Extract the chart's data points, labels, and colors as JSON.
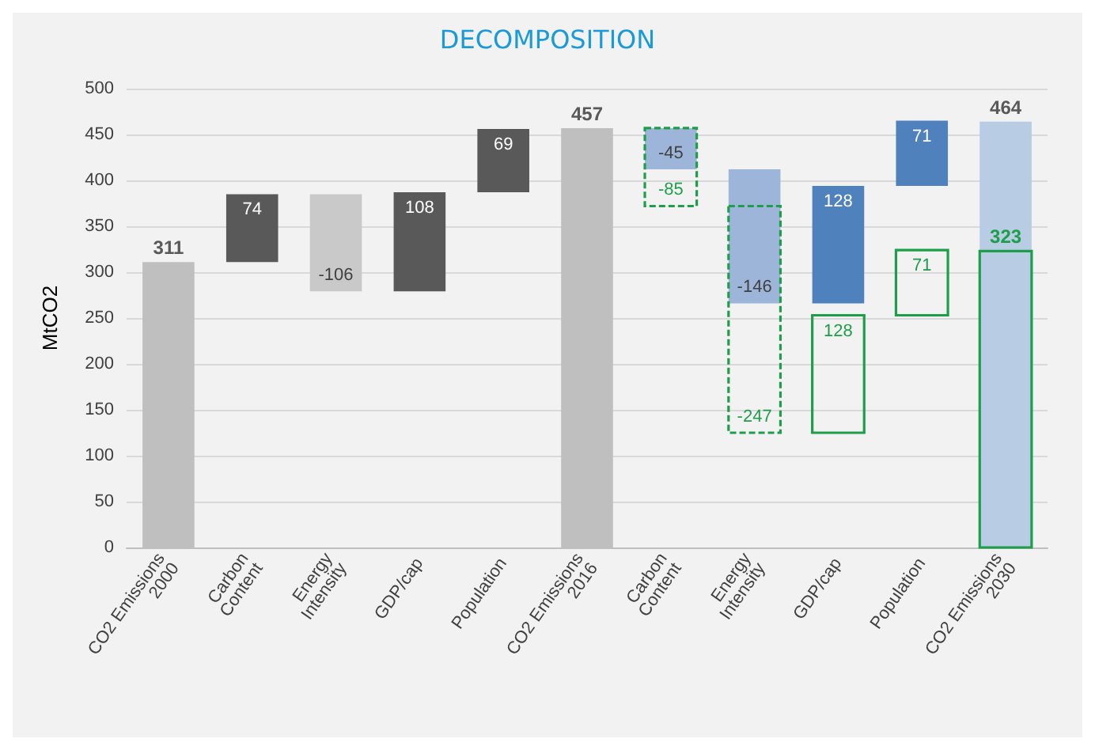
{
  "chart_data": {
    "type": "bar",
    "title": "DECOMPOSITION",
    "ylabel": "MtCO2",
    "categories": [
      "CO2 Emissions\n2000",
      "Carbon\nContent",
      "Energy\nIntensity",
      "GDP/cap",
      "Population",
      "CO2 Emissions\n2016",
      "Carbon\nContent",
      "Energy\nIntensity",
      "GDP/cap",
      "Population",
      "CO2 Emissions\n2030"
    ],
    "series": [
      {
        "colors": [
          "#bfbfbf",
          "#595959",
          "#c9c9c9",
          "#595959",
          "#595959",
          "#bfbfbf",
          null,
          null,
          null,
          null,
          null
        ],
        "values": [
          311,
          74,
          -106,
          108,
          69,
          457,
          null,
          null,
          null,
          null,
          null
        ],
        "base": [
          0,
          311,
          385,
          279,
          387,
          0,
          null,
          null,
          null,
          null,
          null
        ]
      },
      {
        "colors": [
          null,
          null,
          null,
          null,
          null,
          null,
          "#9db5d8",
          "#9db5d8",
          "#4f81bd",
          "#4f81bd",
          "#b8cce4"
        ],
        "values": [
          null,
          null,
          null,
          null,
          null,
          null,
          -45,
          -146,
          128,
          71,
          464
        ],
        "base": [
          null,
          null,
          null,
          null,
          null,
          null,
          457,
          412,
          266,
          394,
          0
        ]
      },
      {
        "color": "#1e9e4a",
        "values": [
          null,
          null,
          null,
          null,
          null,
          null,
          -85,
          -247,
          128,
          71,
          323
        ],
        "base": [
          null,
          null,
          null,
          null,
          null,
          null,
          457,
          372,
          125,
          253,
          0
        ]
      }
    ],
    "ylim": [
      0,
      500
    ],
    "yticks": [
      0,
      50,
      100,
      150,
      200,
      250,
      300,
      350,
      400,
      450,
      500
    ],
    "grid": "y",
    "data_labels": true
  }
}
